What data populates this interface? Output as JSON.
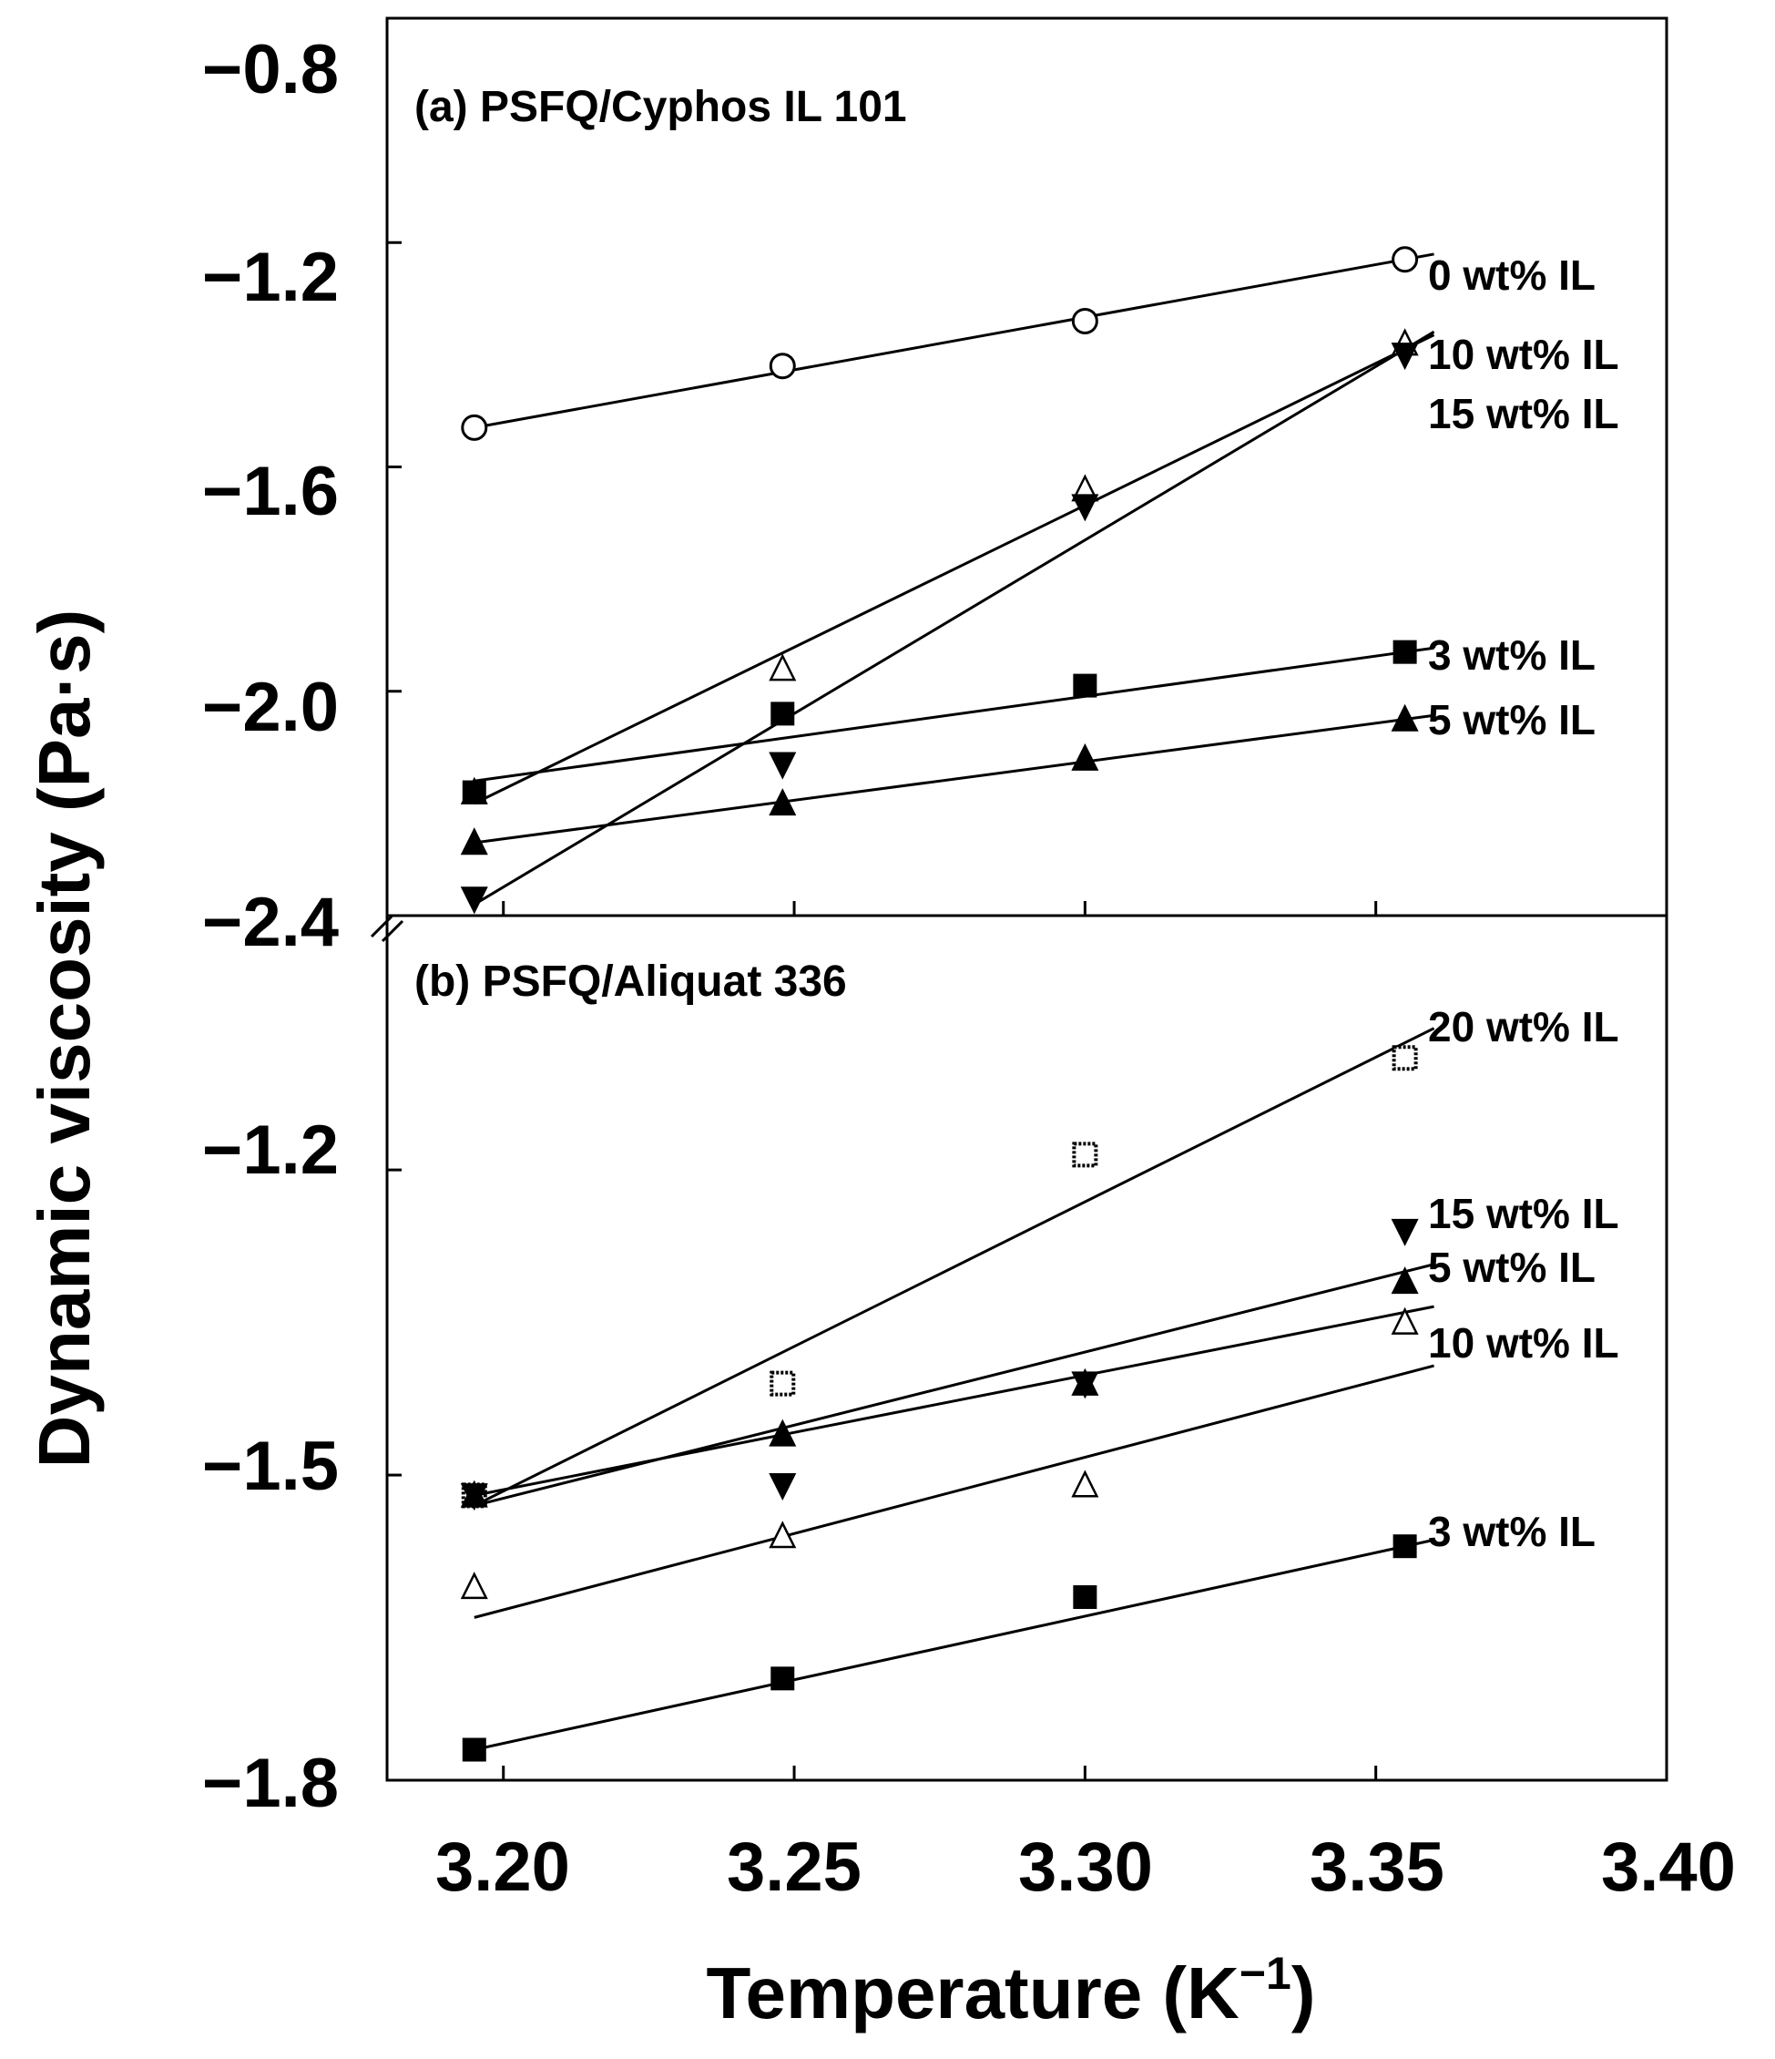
{
  "chart_data": {
    "type": "scatter",
    "xlabel": "Temperature (K",
    "xlabel_sup": "−1",
    "xlabel_close": ")",
    "ylabel": "Dynamic viscosity (Pa·s)",
    "xlim": [
      3.18,
      3.4
    ],
    "xticks": [
      "3.20",
      "3.25",
      "3.30",
      "3.35",
      "3.40"
    ],
    "panels": [
      {
        "id": "a",
        "title": "(a) PSFQ/Cyphos IL 101",
        "ylim": [
          -2.4,
          -0.8
        ],
        "yticks": [
          "−0.8",
          "−1.2",
          "−1.6",
          "−2.0",
          "−2.4"
        ],
        "series": [
          {
            "name": "0 wt% IL",
            "marker": "circle-open",
            "x": [
              3.195,
              3.248,
              3.3,
              3.355
            ],
            "y": [
              -1.53,
              -1.42,
              -1.34,
              -1.23
            ],
            "fit": [
              -1.53,
              -1.23
            ]
          },
          {
            "name": "10 wt% IL",
            "marker": "triangle-up-open",
            "x": [
              3.195,
              3.248,
              3.3,
              3.355
            ],
            "y": [
              -2.18,
              -1.96,
              -1.64,
              -1.38
            ],
            "fit": [
              -2.2,
              -1.39
            ]
          },
          {
            "name": "15 wt% IL",
            "marker": "triangle-down-filled",
            "x": [
              3.195,
              3.248,
              3.3,
              3.355
            ],
            "y": [
              -2.37,
              -2.13,
              -1.67,
              -1.4
            ],
            "fit": [
              -2.38,
              -1.39
            ]
          },
          {
            "name": "3 wt% IL",
            "marker": "square-filled",
            "x": [
              3.195,
              3.248,
              3.3,
              3.355
            ],
            "y": [
              -2.18,
              -2.04,
              -1.99,
              -1.93
            ],
            "fit": [
              -2.16,
              -1.93
            ]
          },
          {
            "name": "5 wt% IL",
            "marker": "triangle-up-filled",
            "x": [
              3.195,
              3.248,
              3.3,
              3.355
            ],
            "y": [
              -2.27,
              -2.2,
              -2.12,
              -2.05
            ],
            "fit": [
              -2.27,
              -2.05
            ]
          }
        ]
      },
      {
        "id": "b",
        "title": "(b) PSFQ/Aliquat 336",
        "ylim": [
          -1.8,
          -0.95
        ],
        "yticks": [
          "−1.2",
          "−1.5",
          "−1.8"
        ],
        "series": [
          {
            "name": "20 wt% IL",
            "marker": "square-dotted",
            "x": [
              3.195,
              3.248,
              3.3,
              3.355
            ],
            "y": [
              -1.52,
              -1.41,
              -1.185,
              -1.09
            ],
            "fit": [
              -1.53,
              -1.075
            ]
          },
          {
            "name": "15 wt% IL",
            "marker": "triangle-down-filled",
            "x": [
              3.195,
              3.248,
              3.3,
              3.355
            ],
            "y": [
              -1.52,
              -1.51,
              -1.41,
              -1.26
            ],
            "fit": [
              -1.53,
              -1.3
            ]
          },
          {
            "name": "5 wt% IL",
            "marker": "triangle-up-filled",
            "x": [
              3.195,
              3.248,
              3.3,
              3.355
            ],
            "y": [
              -1.52,
              -1.46,
              -1.41,
              -1.31
            ],
            "fit": [
              -1.52,
              -1.34
            ]
          },
          {
            "name": "10 wt% IL",
            "marker": "triangle-up-open",
            "x": [
              3.195,
              3.248,
              3.3,
              3.355
            ],
            "y": [
              -1.61,
              -1.56,
              -1.51,
              -1.35
            ],
            "fit": [
              -1.64,
              -1.4
            ]
          },
          {
            "name": "3 wt% IL",
            "marker": "square-filled",
            "x": [
              3.195,
              3.248,
              3.3,
              3.355
            ],
            "y": [
              -1.77,
              -1.7,
              -1.62,
              -1.57
            ],
            "fit": [
              -1.77,
              -1.57
            ]
          }
        ]
      }
    ]
  }
}
